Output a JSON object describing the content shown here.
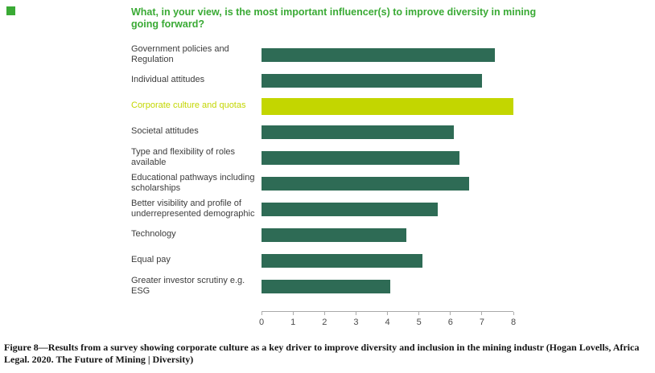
{
  "brand": {
    "corner_square_color": "#3aaa35",
    "title_color": "#3aaa35"
  },
  "chart_data": {
    "type": "bar",
    "orientation": "horizontal",
    "title": "What, in your view, is the most important influencer(s) to improve diversity in mining going forward?",
    "categories": [
      "Government policies and Regulation",
      "Individual attitudes",
      "Corporate culture and quotas",
      "Societal attitudes",
      "Type and flexibility of roles available",
      "Educational pathways including scholarships",
      "Better visibility and profile of underrepresented demographic",
      "Technology",
      "Equal pay",
      "Greater investor scrutiny e.g. ESG"
    ],
    "values": [
      7.4,
      7.0,
      8.0,
      6.1,
      6.3,
      6.6,
      5.6,
      4.6,
      5.1,
      4.1
    ],
    "highlight_index": 2,
    "xlim": [
      0,
      8
    ],
    "x_ticks": [
      0,
      1,
      2,
      3,
      4,
      5,
      6,
      7,
      8
    ],
    "bar_color": "#2e6b55",
    "highlight_color": "#c3d600",
    "xlabel": "",
    "ylabel": "",
    "grid": false,
    "legend": "none"
  },
  "caption": {
    "text": "Figure 8—Results from a survey showing corporate culture as a key driver to improve diversity and inclusion in the mining industr (Hogan Lovells, Africa Legal. 2020.  The Future of Mining | Diversity)"
  }
}
